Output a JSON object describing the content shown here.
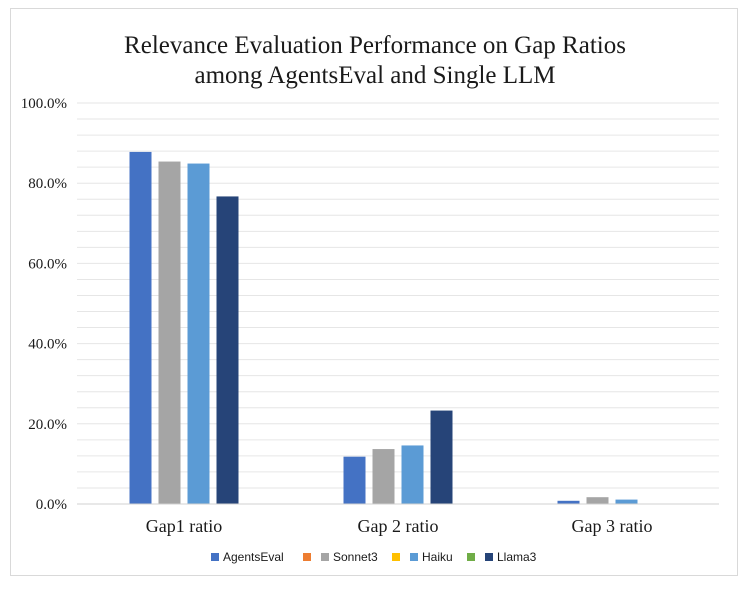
{
  "chart_data": {
    "type": "bar",
    "title": [
      "Relevance Evaluation Performance on Gap Ratios",
      "among AgentsEval and Single LLM"
    ],
    "categories": [
      "Gap1 ratio",
      "Gap 2 ratio",
      "Gap 3 ratio"
    ],
    "series": [
      {
        "name": "AgentsEval",
        "color": "#4472c4",
        "values": [
          87.8,
          11.8,
          0.8
        ]
      },
      {
        "name": "Sonnet3",
        "color": "#ed7d31",
        "values": [
          null,
          null,
          null
        ]
      },
      {
        "name": "Sonnet3",
        "color": "#a5a5a5",
        "values": [
          85.4,
          13.7,
          1.7
        ]
      },
      {
        "name": "Haiku",
        "color": "#ffc000",
        "values": [
          null,
          null,
          null
        ]
      },
      {
        "name": "Haiku",
        "color": "#5b9bd5",
        "values": [
          84.9,
          14.6,
          1.1
        ]
      },
      {
        "name": "Llama3",
        "color": "#70ad47",
        "values": [
          null,
          null,
          null
        ]
      },
      {
        "name": "Llama3",
        "color": "#264478",
        "values": [
          76.7,
          23.3,
          null
        ]
      }
    ],
    "legend_entries": [
      {
        "name": "AgentsEval",
        "color": "#4472c4"
      },
      {
        "name": "",
        "color": "#ed7d31"
      },
      {
        "name": "Sonnet3",
        "color": "#a5a5a5"
      },
      {
        "name": "",
        "color": "#ffc000"
      },
      {
        "name": "Haiku",
        "color": "#5b9bd5"
      },
      {
        "name": "",
        "color": "#70ad47"
      },
      {
        "name": "Llama3",
        "color": "#264478"
      }
    ],
    "y_ticks": [
      "0.0%",
      "20.0%",
      "40.0%",
      "60.0%",
      "80.0%",
      "100.0%"
    ],
    "ylim": [
      0,
      100
    ],
    "y_major_step": 20,
    "y_minor_step": 4,
    "xlabel": "",
    "ylabel": "",
    "grid": true,
    "legend_position": "bottom",
    "gridline_color": "#e6e6e6"
  }
}
